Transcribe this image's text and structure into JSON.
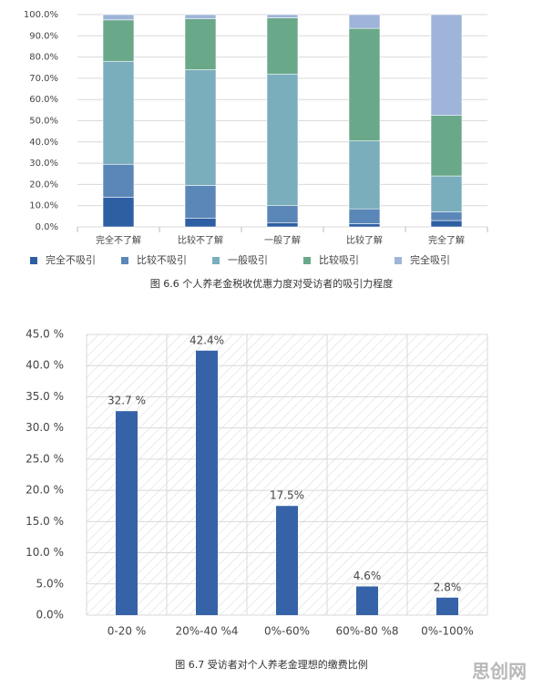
{
  "chart_data": [
    {
      "type": "stacked_bar",
      "title": "图 6.6 个人养老金税收优惠力度对受访者的吸引力程度",
      "categories": [
        "完全不了解",
        "比较不了解",
        "一般了解",
        "比较了解",
        "完全了解"
      ],
      "series": [
        {
          "name": "完全不吸引",
          "color": "#2e5fa3",
          "values": [
            14,
            4,
            2,
            1.5,
            3
          ]
        },
        {
          "name": "比较不吸引",
          "color": "#5b87b8",
          "values": [
            15.5,
            15.5,
            8,
            7,
            4
          ]
        },
        {
          "name": "一般吸引",
          "color": "#7aaebd",
          "values": [
            48.5,
            54.5,
            62,
            32,
            17
          ]
        },
        {
          "name": "比较吸引",
          "color": "#6aa88a",
          "values": [
            19.5,
            24,
            26.5,
            53,
            28.5
          ]
        },
        {
          "name": "完全吸引",
          "color": "#9fb4d9",
          "values": [
            2.5,
            2,
            1.5,
            6.5,
            47.5
          ]
        }
      ],
      "ylim": [
        0,
        100
      ],
      "yticks": [
        {
          "value": 0,
          "label": "0.0%"
        },
        {
          "value": 10,
          "label": "10.0%"
        },
        {
          "value": 20,
          "label": "20.0%"
        },
        {
          "value": 30,
          "label": "30.0%"
        },
        {
          "value": 40,
          "label": "40.0%"
        },
        {
          "value": 50,
          "label": "50.0%"
        },
        {
          "value": 60,
          "label": "60.0%"
        },
        {
          "value": 70,
          "label": "70.0%"
        },
        {
          "value": 80,
          "label": "80.0%"
        },
        {
          "value": 90,
          "label": "90.0%"
        },
        {
          "value": 100,
          "label": "100.0%"
        }
      ],
      "grid": true,
      "legend": "bottom"
    },
    {
      "type": "bar",
      "title": "图 6.7 受访者对个人养老金理想的缴费比例",
      "categories": [
        "0-20 %",
        "20%-40  %4",
        "0%-60%",
        "60%-80  %8",
        "0%-100%"
      ],
      "values": [
        32.7,
        42.4,
        17.5,
        4.6,
        2.8
      ],
      "value_labels": [
        "32.7 %",
        "42.4%",
        "17.5%",
        "4.6%",
        "2.8%"
      ],
      "color": "#3663a8",
      "ylim": [
        0,
        45
      ],
      "yticks": [
        {
          "value": 0,
          "label": "0.0%"
        },
        {
          "value": 5,
          "label": "5.0%"
        },
        {
          "value": 10,
          "label": "10.0 %"
        },
        {
          "value": 15,
          "label": "15.0 %"
        },
        {
          "value": 20,
          "label": "20.0 %"
        },
        {
          "value": 25,
          "label": "25.0 %"
        },
        {
          "value": 30,
          "label": "30.0 %"
        },
        {
          "value": 35,
          "label": "35.0 %"
        },
        {
          "value": 40,
          "label": "40.0 %"
        },
        {
          "value": 45,
          "label": "45.0 %"
        }
      ],
      "grid": true
    }
  ],
  "watermark": "思创网"
}
